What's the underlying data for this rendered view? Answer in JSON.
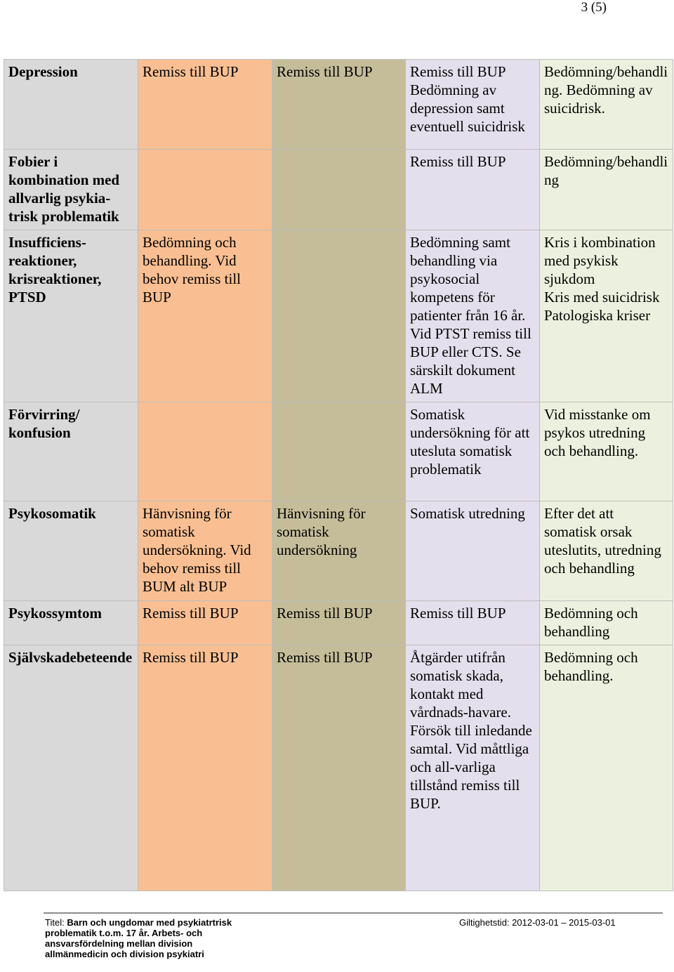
{
  "page": {
    "number": "3 (5)"
  },
  "rows": [
    {
      "h": "Depression",
      "c1": "Remiss till BUP",
      "c2": "Remiss till BUP",
      "c3": "Remiss till BUP\nBedömning av depression samt eventuell suicidrisk",
      "c4": "Bedömning/behandling. Bedömning av suicidrisk."
    },
    {
      "h": "Fobier i kombination med allvarlig psykia-trisk problematik",
      "c1": "",
      "c2": "",
      "c3": "Remiss till BUP",
      "c4": "Bedömning/behandling"
    },
    {
      "h": "Insufficiens-reaktioner, krisreaktioner, PTSD",
      "c1": "Bedömning och behandling. Vid behov remiss till BUP",
      "c2": "",
      "c3": "Bedömning samt behandling via psykosocial kompetens för patienter från 16 år. Vid PTST remiss till BUP eller CTS. Se särskilt dokument ALM",
      "c4": "Kris i kombination med psykisk sjukdom\nKris med suicidrisk\nPatologiska kriser"
    },
    {
      "h": "Förvirring/ konfusion",
      "c1": "",
      "c2": "",
      "c3": "Somatisk undersökning för att utesluta somatisk problematik",
      "c4": "Vid misstanke om psykos utredning och behandling."
    },
    {
      "h": "Psykosomatik",
      "c1": "Hänvisning för somatisk undersökning. Vid behov remiss till BUM alt BUP",
      "c2": "Hänvisning för somatisk undersökning",
      "c3": "Somatisk utredning",
      "c4": "Efter det att somatisk orsak uteslutits, utredning och behandling"
    },
    {
      "h": "Psykossymtom",
      "c1": "Remiss till BUP",
      "c2": "Remiss till BUP",
      "c3": "Remiss till BUP",
      "c4": "Bedömning och behandling"
    },
    {
      "h": "Självskadebeteende",
      "c1": "Remiss till BUP",
      "c2": "Remiss till BUP",
      "c3": "Åtgärder utifrån somatisk skada, kontakt med vårdnads-havare. Försök till inledande samtal. Vid måttliga och all-varliga tillstånd remiss till BUP.",
      "c4": "Bedömning och behandling."
    }
  ],
  "footer": {
    "title_label": "Titel:",
    "title_bold": "Barn och ungdomar med psykiatrtrisk problematik t.o.m. 17 år. Arbets- och ansvarsfördelning mellan division allmänmedicin och division psykiatri",
    "valid_label": "Giltighetstid:",
    "valid_value": "2012-03-01 – 2015-03-01"
  }
}
